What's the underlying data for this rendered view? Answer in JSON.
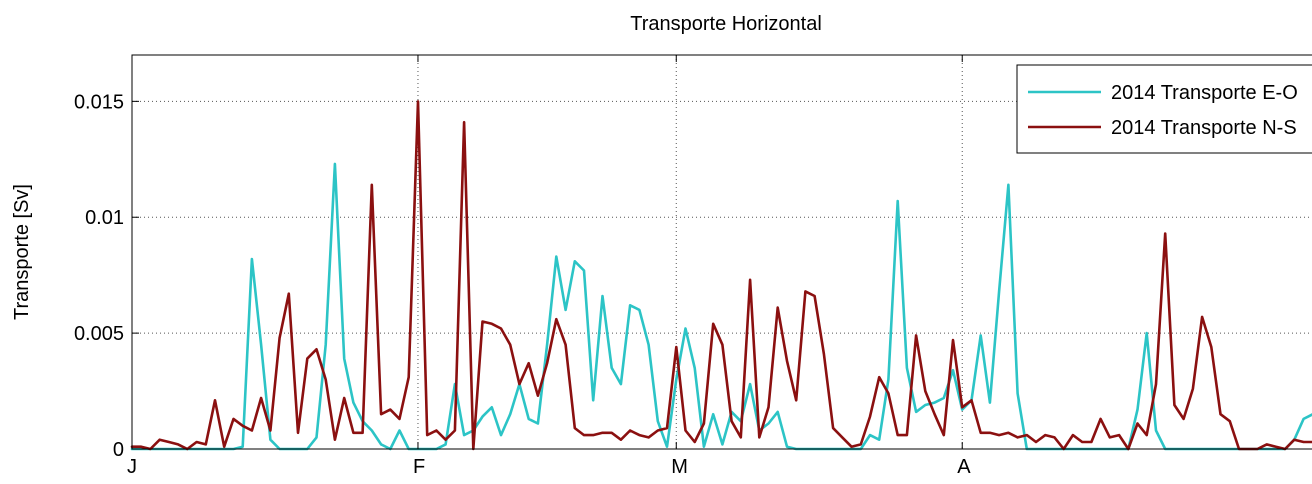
{
  "chart_data": {
    "type": "line",
    "title": "Transporte Horizontal",
    "xlabel": "",
    "ylabel": "Transporte [Sv]",
    "x_start": "2014-01-01",
    "xlim": [
      "2014-01-01",
      "2014-05-10"
    ],
    "ylim": [
      0,
      0.017
    ],
    "x_ticks": [
      {
        "date": "2014-01-01",
        "label": "J"
      },
      {
        "date": "2014-02-01",
        "label": "F"
      },
      {
        "date": "2014-03-01",
        "label": "M"
      },
      {
        "date": "2014-04-01",
        "label": "A"
      }
    ],
    "y_ticks": [
      {
        "value": 0,
        "label": "0"
      },
      {
        "value": 0.005,
        "label": "0.005"
      },
      {
        "value": 0.01,
        "label": "0.01"
      },
      {
        "value": 0.015,
        "label": "0.015"
      }
    ],
    "grid": true,
    "legend_position": "top-right",
    "series": [
      {
        "name": "2014 Transporte E-O",
        "color": "#2cc4c6",
        "points": [
          [
            "2014-01-01",
            0
          ],
          [
            "2014-01-12",
            0
          ],
          [
            "2014-01-13",
            0.0001
          ],
          [
            "2014-01-14",
            0.0082
          ],
          [
            "2014-01-15",
            0.0045
          ],
          [
            "2014-01-16",
            0.0004
          ],
          [
            "2014-01-17",
            0
          ],
          [
            "2014-01-20",
            0
          ],
          [
            "2014-01-21",
            0.0005
          ],
          [
            "2014-01-22",
            0.0045
          ],
          [
            "2014-01-23",
            0.0123
          ],
          [
            "2014-01-24",
            0.0039
          ],
          [
            "2014-01-25",
            0.002
          ],
          [
            "2014-01-26",
            0.0012
          ],
          [
            "2014-01-27",
            0.0008
          ],
          [
            "2014-01-28",
            0.0002
          ],
          [
            "2014-01-29",
            0
          ],
          [
            "2014-01-30",
            0.0008
          ],
          [
            "2014-01-31",
            0
          ],
          [
            "2014-02-03",
            0
          ],
          [
            "2014-02-04",
            0.0002
          ],
          [
            "2014-02-05",
            0.0028
          ],
          [
            "2014-02-06",
            0.0006
          ],
          [
            "2014-02-07",
            0.0008
          ],
          [
            "2014-02-08",
            0.0014
          ],
          [
            "2014-02-09",
            0.0018
          ],
          [
            "2014-02-10",
            0.0006
          ],
          [
            "2014-02-11",
            0.0015
          ],
          [
            "2014-02-12",
            0.0028
          ],
          [
            "2014-02-13",
            0.0013
          ],
          [
            "2014-02-14",
            0.0011
          ],
          [
            "2014-02-15",
            0.0045
          ],
          [
            "2014-02-16",
            0.0083
          ],
          [
            "2014-02-17",
            0.006
          ],
          [
            "2014-02-18",
            0.0081
          ],
          [
            "2014-02-19",
            0.0077
          ],
          [
            "2014-02-20",
            0.0021
          ],
          [
            "2014-02-21",
            0.0066
          ],
          [
            "2014-02-22",
            0.0035
          ],
          [
            "2014-02-23",
            0.0028
          ],
          [
            "2014-02-24",
            0.0062
          ],
          [
            "2014-02-25",
            0.006
          ],
          [
            "2014-02-26",
            0.0045
          ],
          [
            "2014-02-27",
            0.0012
          ],
          [
            "2014-02-28",
            0.0001
          ],
          [
            "2014-03-01",
            0.003
          ],
          [
            "2014-03-02",
            0.0052
          ],
          [
            "2014-03-03",
            0.0035
          ],
          [
            "2014-03-04",
            0.0001
          ],
          [
            "2014-03-05",
            0.0015
          ],
          [
            "2014-03-06",
            0.0002
          ],
          [
            "2014-03-07",
            0.0016
          ],
          [
            "2014-03-08",
            0.0012
          ],
          [
            "2014-03-09",
            0.0028
          ],
          [
            "2014-03-10",
            0.0008
          ],
          [
            "2014-03-11",
            0.0011
          ],
          [
            "2014-03-12",
            0.0016
          ],
          [
            "2014-03-13",
            0.0001
          ],
          [
            "2014-03-14",
            0
          ],
          [
            "2014-03-21",
            0
          ],
          [
            "2014-03-22",
            0.0006
          ],
          [
            "2014-03-23",
            0.0004
          ],
          [
            "2014-03-24",
            0.003
          ],
          [
            "2014-03-25",
            0.0107
          ],
          [
            "2014-03-26",
            0.0035
          ],
          [
            "2014-03-27",
            0.0016
          ],
          [
            "2014-03-28",
            0.0019
          ],
          [
            "2014-03-29",
            0.002
          ],
          [
            "2014-03-30",
            0.0022
          ],
          [
            "2014-03-31",
            0.0034
          ],
          [
            "2014-04-01",
            0.0017
          ],
          [
            "2014-04-02",
            0.0021
          ],
          [
            "2014-04-03",
            0.0049
          ],
          [
            "2014-04-04",
            0.002
          ],
          [
            "2014-04-05",
            0.0068
          ],
          [
            "2014-04-06",
            0.0114
          ],
          [
            "2014-04-07",
            0.0024
          ],
          [
            "2014-04-08",
            0
          ],
          [
            "2014-04-19",
            0
          ],
          [
            "2014-04-20",
            0.0017
          ],
          [
            "2014-04-21",
            0.005
          ],
          [
            "2014-04-22",
            0.0008
          ],
          [
            "2014-04-23",
            0
          ],
          [
            "2014-05-06",
            0
          ],
          [
            "2014-05-07",
            0.0004
          ],
          [
            "2014-05-08",
            0.0013
          ],
          [
            "2014-05-09",
            0.0015
          ]
        ]
      },
      {
        "name": "2014 Transporte N-S",
        "color": "#8b1010",
        "points": [
          [
            "2014-01-01",
            0.0001
          ],
          [
            "2014-01-02",
            0.0001
          ],
          [
            "2014-01-03",
            0
          ],
          [
            "2014-01-04",
            0.0004
          ],
          [
            "2014-01-05",
            0.0003
          ],
          [
            "2014-01-06",
            0.0002
          ],
          [
            "2014-01-07",
            0
          ],
          [
            "2014-01-08",
            0.0003
          ],
          [
            "2014-01-09",
            0.0002
          ],
          [
            "2014-01-10",
            0.0021
          ],
          [
            "2014-01-11",
            0.0001
          ],
          [
            "2014-01-12",
            0.0013
          ],
          [
            "2014-01-13",
            0.001
          ],
          [
            "2014-01-14",
            0.0008
          ],
          [
            "2014-01-15",
            0.0022
          ],
          [
            "2014-01-16",
            0.0008
          ],
          [
            "2014-01-17",
            0.0048
          ],
          [
            "2014-01-18",
            0.0067
          ],
          [
            "2014-01-19",
            0.0007
          ],
          [
            "2014-01-20",
            0.0039
          ],
          [
            "2014-01-21",
            0.0043
          ],
          [
            "2014-01-22",
            0.003
          ],
          [
            "2014-01-23",
            0.0004
          ],
          [
            "2014-01-24",
            0.0022
          ],
          [
            "2014-01-25",
            0.0007
          ],
          [
            "2014-01-26",
            0.0007
          ],
          [
            "2014-01-27",
            0.0114
          ],
          [
            "2014-01-28",
            0.0015
          ],
          [
            "2014-01-29",
            0.0017
          ],
          [
            "2014-01-30",
            0.0013
          ],
          [
            "2014-01-31",
            0.0031
          ],
          [
            "2014-02-01",
            0.015
          ],
          [
            "2014-02-02",
            0.0006
          ],
          [
            "2014-02-03",
            0.0008
          ],
          [
            "2014-02-04",
            0.0004
          ],
          [
            "2014-02-05",
            0.0008
          ],
          [
            "2014-02-06",
            0.0141
          ],
          [
            "2014-02-07",
            0
          ],
          [
            "2014-02-08",
            0.0055
          ],
          [
            "2014-02-09",
            0.0054
          ],
          [
            "2014-02-10",
            0.0052
          ],
          [
            "2014-02-11",
            0.0045
          ],
          [
            "2014-02-12",
            0.0028
          ],
          [
            "2014-02-13",
            0.0037
          ],
          [
            "2014-02-14",
            0.0023
          ],
          [
            "2014-02-15",
            0.0037
          ],
          [
            "2014-02-16",
            0.0056
          ],
          [
            "2014-02-17",
            0.0045
          ],
          [
            "2014-02-18",
            0.0009
          ],
          [
            "2014-02-19",
            0.0006
          ],
          [
            "2014-02-20",
            0.0006
          ],
          [
            "2014-02-21",
            0.0007
          ],
          [
            "2014-02-22",
            0.0007
          ],
          [
            "2014-02-23",
            0.0004
          ],
          [
            "2014-02-24",
            0.0008
          ],
          [
            "2014-02-25",
            0.0006
          ],
          [
            "2014-02-26",
            0.0005
          ],
          [
            "2014-02-27",
            0.0008
          ],
          [
            "2014-02-28",
            0.0009
          ],
          [
            "2014-03-01",
            0.0044
          ],
          [
            "2014-03-02",
            0.0008
          ],
          [
            "2014-03-03",
            0.0003
          ],
          [
            "2014-03-04",
            0.0011
          ],
          [
            "2014-03-05",
            0.0054
          ],
          [
            "2014-03-06",
            0.0045
          ],
          [
            "2014-03-07",
            0.0012
          ],
          [
            "2014-03-08",
            0.0005
          ],
          [
            "2014-03-09",
            0.0073
          ],
          [
            "2014-03-10",
            0.0005
          ],
          [
            "2014-03-11",
            0.0018
          ],
          [
            "2014-03-12",
            0.0061
          ],
          [
            "2014-03-13",
            0.0038
          ],
          [
            "2014-03-14",
            0.0021
          ],
          [
            "2014-03-15",
            0.0068
          ],
          [
            "2014-03-16",
            0.0066
          ],
          [
            "2014-03-17",
            0.0041
          ],
          [
            "2014-03-18",
            0.0009
          ],
          [
            "2014-03-19",
            0.0005
          ],
          [
            "2014-03-20",
            0.0001
          ],
          [
            "2014-03-21",
            0.0002
          ],
          [
            "2014-03-22",
            0.0014
          ],
          [
            "2014-03-23",
            0.0031
          ],
          [
            "2014-03-24",
            0.0024
          ],
          [
            "2014-03-25",
            0.0006
          ],
          [
            "2014-03-26",
            0.0006
          ],
          [
            "2014-03-27",
            0.0049
          ],
          [
            "2014-03-28",
            0.0025
          ],
          [
            "2014-03-29",
            0.0015
          ],
          [
            "2014-03-30",
            0.0006
          ],
          [
            "2014-03-31",
            0.0047
          ],
          [
            "2014-04-01",
            0.0018
          ],
          [
            "2014-04-02",
            0.0021
          ],
          [
            "2014-04-03",
            0.0007
          ],
          [
            "2014-04-04",
            0.0007
          ],
          [
            "2014-04-05",
            0.0006
          ],
          [
            "2014-04-06",
            0.0007
          ],
          [
            "2014-04-07",
            0.0005
          ],
          [
            "2014-04-08",
            0.0006
          ],
          [
            "2014-04-09",
            0.0003
          ],
          [
            "2014-04-10",
            0.0006
          ],
          [
            "2014-04-11",
            0.0005
          ],
          [
            "2014-04-12",
            0
          ],
          [
            "2014-04-13",
            0.0006
          ],
          [
            "2014-04-14",
            0.0003
          ],
          [
            "2014-04-15",
            0.0003
          ],
          [
            "2014-04-16",
            0.0013
          ],
          [
            "2014-04-17",
            0.0005
          ],
          [
            "2014-04-18",
            0.0006
          ],
          [
            "2014-04-19",
            0
          ],
          [
            "2014-04-20",
            0.0011
          ],
          [
            "2014-04-21",
            0.0006
          ],
          [
            "2014-04-22",
            0.0028
          ],
          [
            "2014-04-23",
            0.0093
          ],
          [
            "2014-04-24",
            0.0019
          ],
          [
            "2014-04-25",
            0.0013
          ],
          [
            "2014-04-26",
            0.0026
          ],
          [
            "2014-04-27",
            0.0057
          ],
          [
            "2014-04-28",
            0.0044
          ],
          [
            "2014-04-29",
            0.0015
          ],
          [
            "2014-04-30",
            0.0012
          ],
          [
            "2014-05-01",
            0
          ],
          [
            "2014-05-02",
            0
          ],
          [
            "2014-05-03",
            0
          ],
          [
            "2014-05-04",
            0.0002
          ],
          [
            "2014-05-05",
            0.0001
          ],
          [
            "2014-05-06",
            0
          ],
          [
            "2014-05-07",
            0.0004
          ],
          [
            "2014-05-08",
            0.0003
          ],
          [
            "2014-05-09",
            0.0003
          ]
        ]
      }
    ]
  }
}
